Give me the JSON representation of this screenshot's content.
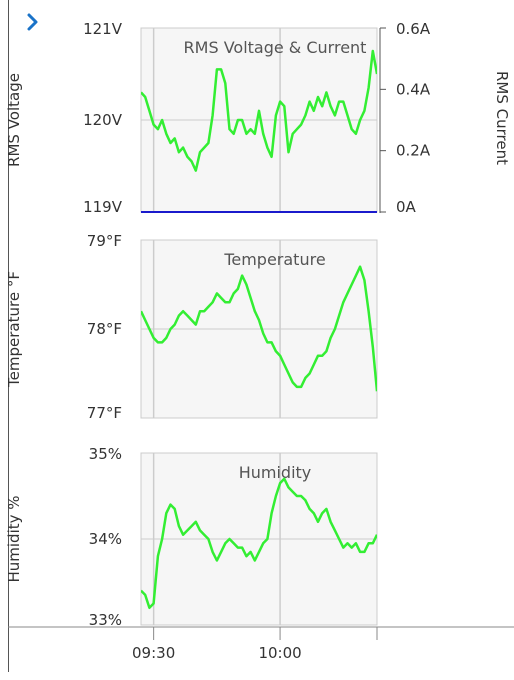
{
  "nav": {
    "expand_icon": "chevron-right-icon",
    "icon_color": "#1a73c8"
  },
  "colors": {
    "series": "#33ee33",
    "current": "#1a1acc",
    "grid": "#cccccc",
    "plot_bg": "#f6f6f6",
    "axis": "#555555",
    "text": "#333333"
  },
  "x_axis": {
    "ticks": [
      "09:30",
      "10:00"
    ],
    "range": [
      "09:27",
      "10:23"
    ]
  },
  "chart_data": [
    {
      "type": "line",
      "title": "RMS Voltage & Current",
      "ylabel": "RMS Voltage",
      "y2label": "RMS Current",
      "ylim": [
        119,
        121
      ],
      "y_ticks": [
        "121V",
        "120V",
        "119V"
      ],
      "y2lim": [
        0,
        0.6
      ],
      "y2_ticks": [
        "0.6A",
        "0.4A",
        "0.2A",
        "0A"
      ],
      "grid": true,
      "series": [
        {
          "axis": "left",
          "x": [
            "09:27",
            "09:28",
            "09:29",
            "09:30",
            "09:31",
            "09:32",
            "09:33",
            "09:34",
            "09:35",
            "09:36",
            "09:37",
            "09:38",
            "09:39",
            "09:40",
            "09:41",
            "09:42",
            "09:43",
            "09:44",
            "09:45",
            "09:46",
            "09:47",
            "09:48",
            "09:49",
            "09:50",
            "09:51",
            "09:52",
            "09:53",
            "09:54",
            "09:55",
            "09:56",
            "09:57",
            "09:58",
            "09:59",
            "10:00",
            "10:01",
            "10:02",
            "10:03",
            "10:04",
            "10:05",
            "10:06",
            "10:07",
            "10:08",
            "10:09",
            "10:10",
            "10:11",
            "10:12",
            "10:13",
            "10:14",
            "10:15",
            "10:16",
            "10:17",
            "10:18",
            "10:19",
            "10:20",
            "10:21",
            "10:22",
            "10:23"
          ],
          "values": [
            120.3,
            120.25,
            120.1,
            119.95,
            119.9,
            120.0,
            119.85,
            119.75,
            119.8,
            119.65,
            119.7,
            119.6,
            119.55,
            119.45,
            119.65,
            119.7,
            119.75,
            120.05,
            120.55,
            120.55,
            120.4,
            119.9,
            119.85,
            120.0,
            120.0,
            119.85,
            119.9,
            119.85,
            120.1,
            119.85,
            119.7,
            119.6,
            120.05,
            120.2,
            120.15,
            119.65,
            119.85,
            119.9,
            119.95,
            120.05,
            120.2,
            120.1,
            120.25,
            120.15,
            120.3,
            120.15,
            120.05,
            120.2,
            120.2,
            120.05,
            119.9,
            119.85,
            120.0,
            120.1,
            120.35,
            120.75,
            120.5
          ]
        },
        {
          "axis": "right",
          "x": [
            "09:27",
            "10:23"
          ],
          "values": [
            0.0,
            0.0
          ]
        }
      ]
    },
    {
      "type": "line",
      "title": "Temperature",
      "ylabel": "Temperature °F",
      "ylim": [
        77,
        79
      ],
      "y_ticks": [
        "79°F",
        "78°F",
        "77°F"
      ],
      "grid": true,
      "series": [
        {
          "x": [
            "09:27",
            "09:28",
            "09:29",
            "09:30",
            "09:31",
            "09:32",
            "09:33",
            "09:34",
            "09:35",
            "09:36",
            "09:37",
            "09:38",
            "09:39",
            "09:40",
            "09:41",
            "09:42",
            "09:43",
            "09:44",
            "09:45",
            "09:46",
            "09:47",
            "09:48",
            "09:49",
            "09:50",
            "09:51",
            "09:52",
            "09:53",
            "09:54",
            "09:55",
            "09:56",
            "09:57",
            "09:58",
            "09:59",
            "10:00",
            "10:01",
            "10:02",
            "10:03",
            "10:04",
            "10:05",
            "10:06",
            "10:07",
            "10:08",
            "10:09",
            "10:10",
            "10:11",
            "10:12",
            "10:13",
            "10:14",
            "10:15",
            "10:16",
            "10:17",
            "10:18",
            "10:19",
            "10:20",
            "10:21",
            "10:22",
            "10:23"
          ],
          "values": [
            78.2,
            78.1,
            78.0,
            77.9,
            77.85,
            77.85,
            77.9,
            78.0,
            78.05,
            78.15,
            78.2,
            78.15,
            78.1,
            78.05,
            78.2,
            78.2,
            78.25,
            78.3,
            78.4,
            78.35,
            78.3,
            78.3,
            78.4,
            78.45,
            78.6,
            78.5,
            78.35,
            78.2,
            78.1,
            77.95,
            77.85,
            77.85,
            77.75,
            77.7,
            77.6,
            77.5,
            77.4,
            77.35,
            77.35,
            77.45,
            77.5,
            77.6,
            77.7,
            77.7,
            77.75,
            77.9,
            78.0,
            78.15,
            78.3,
            78.4,
            78.5,
            78.6,
            78.7,
            78.55,
            78.2,
            77.8,
            77.3
          ]
        }
      ]
    },
    {
      "type": "line",
      "title": "Humidity",
      "ylabel": "Humidity %",
      "ylim": [
        33,
        35
      ],
      "y_ticks": [
        "35%",
        "34%",
        "33%"
      ],
      "grid": true,
      "series": [
        {
          "x": [
            "09:27",
            "09:28",
            "09:29",
            "09:30",
            "09:31",
            "09:32",
            "09:33",
            "09:34",
            "09:35",
            "09:36",
            "09:37",
            "09:38",
            "09:39",
            "09:40",
            "09:41",
            "09:42",
            "09:43",
            "09:44",
            "09:45",
            "09:46",
            "09:47",
            "09:48",
            "09:49",
            "09:50",
            "09:51",
            "09:52",
            "09:53",
            "09:54",
            "09:55",
            "09:56",
            "09:57",
            "09:58",
            "09:59",
            "10:00",
            "10:01",
            "10:02",
            "10:03",
            "10:04",
            "10:05",
            "10:06",
            "10:07",
            "10:08",
            "10:09",
            "10:10",
            "10:11",
            "10:12",
            "10:13",
            "10:14",
            "10:15",
            "10:16",
            "10:17",
            "10:18",
            "10:19",
            "10:20",
            "10:21",
            "10:22",
            "10:23"
          ],
          "values": [
            33.4,
            33.35,
            33.2,
            33.25,
            33.8,
            34.0,
            34.3,
            34.4,
            34.35,
            34.15,
            34.05,
            34.1,
            34.15,
            34.2,
            34.1,
            34.05,
            34.0,
            33.85,
            33.75,
            33.85,
            33.95,
            34.0,
            33.95,
            33.9,
            33.9,
            33.8,
            33.85,
            33.75,
            33.85,
            33.95,
            34.0,
            34.3,
            34.5,
            34.65,
            34.7,
            34.6,
            34.55,
            34.5,
            34.5,
            34.45,
            34.35,
            34.3,
            34.2,
            34.3,
            34.35,
            34.2,
            34.1,
            34.0,
            33.9,
            33.95,
            33.9,
            33.95,
            33.85,
            33.85,
            33.95,
            33.95,
            34.05
          ]
        }
      ]
    }
  ]
}
